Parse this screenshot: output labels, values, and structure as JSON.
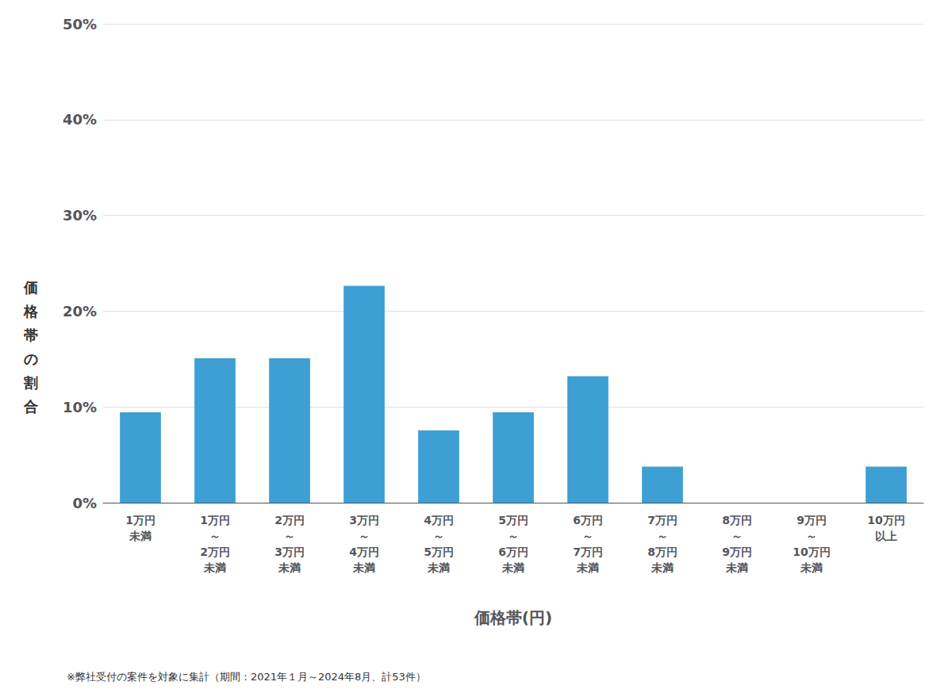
{
  "chart_data": {
    "type": "bar",
    "categories": [
      "1万円\n未満",
      "1万円\n～\n2万円\n未満",
      "2万円\n～\n3万円\n未満",
      "3万円\n～\n4万円\n未満",
      "4万円\n～\n5万円\n未満",
      "5万円\n～\n6万円\n未満",
      "6万円\n～\n7万円\n未満",
      "7万円\n～\n8万円\n未満",
      "8万円\n～\n9万円\n未満",
      "9万円\n～\n10万円\n未満",
      "10万円\n以上"
    ],
    "values": [
      9.43,
      15.09,
      15.09,
      22.64,
      7.55,
      9.43,
      13.21,
      3.77,
      0.0,
      0.0,
      3.77
    ],
    "color": "#3d9fd3",
    "xlabel": "価格帯(円)",
    "ylabel": "価\n格\n帯\nの\n割\n合",
    "annotations": [
      "※弊社受付の案件を対象に集計（期間：2021年１月～2024年8月、計53件）"
    ],
    "ylim": [
      0,
      50
    ],
    "yticks": [
      {
        "value": 0,
        "label": "0%"
      },
      {
        "value": 10,
        "label": "10%"
      },
      {
        "value": 20,
        "label": "20%"
      },
      {
        "value": 30,
        "label": "30%"
      },
      {
        "value": 40,
        "label": "40%"
      },
      {
        "value": 50,
        "label": "50%"
      }
    ],
    "grid": true
  }
}
